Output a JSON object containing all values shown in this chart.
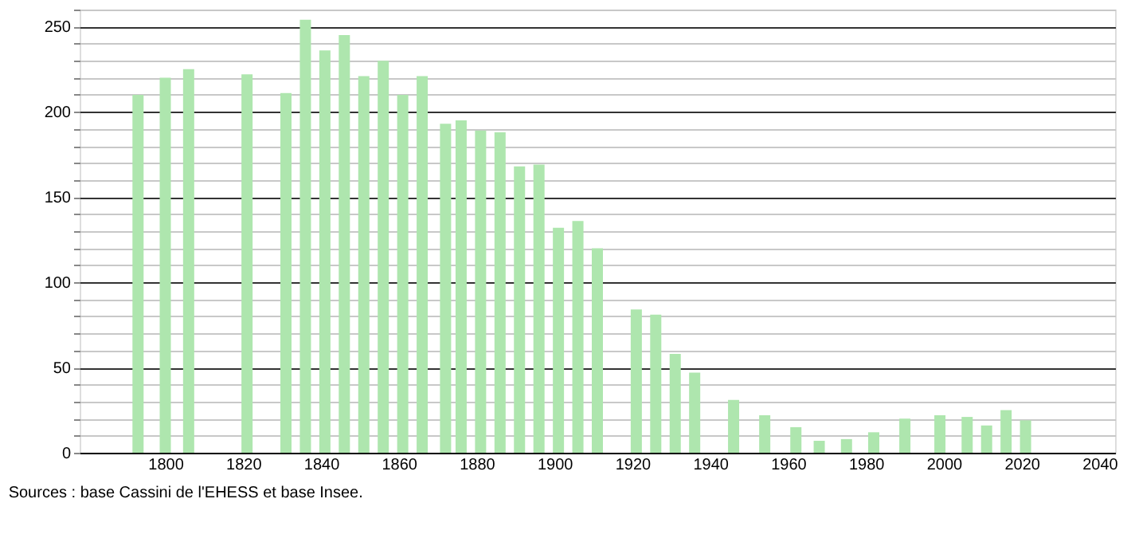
{
  "chart_data": {
    "type": "bar",
    "x": [
      1793,
      1800,
      1806,
      1821,
      1831,
      1836,
      1841,
      1846,
      1851,
      1856,
      1861,
      1866,
      1872,
      1876,
      1881,
      1886,
      1891,
      1896,
      1901,
      1906,
      1911,
      1921,
      1926,
      1931,
      1936,
      1946,
      1954,
      1962,
      1968,
      1975,
      1982,
      1990,
      1999,
      2006,
      2011,
      2016,
      2021
    ],
    "values": [
      210,
      220,
      225,
      222,
      211,
      254,
      236,
      245,
      221,
      230,
      210,
      221,
      193,
      195,
      189,
      188,
      168,
      169,
      132,
      136,
      120,
      84,
      81,
      58,
      47,
      31,
      22,
      15,
      7,
      8,
      12,
      20,
      22,
      21,
      16,
      25,
      19
    ],
    "color": "#aee6ae",
    "xlim": [
      1778,
      2044
    ],
    "xticks": [
      1800,
      1820,
      1840,
      1860,
      1880,
      1900,
      1920,
      1940,
      1960,
      1980,
      2000,
      2020,
      2040
    ],
    "ylim": [
      0,
      260
    ],
    "yticks": [
      0,
      {
        "value": 10,
        "label": null
      },
      {
        "value": 20,
        "label": null
      },
      {
        "value": 30,
        "label": null
      },
      {
        "value": 40,
        "label": null
      },
      50,
      {
        "value": 60,
        "label": null
      },
      {
        "value": 70,
        "label": null
      },
      {
        "value": 80,
        "label": null
      },
      {
        "value": 90,
        "label": null
      },
      100,
      {
        "value": 110,
        "label": null
      },
      {
        "value": 120,
        "label": null
      },
      {
        "value": 130,
        "label": null
      },
      {
        "value": 140,
        "label": null
      },
      150,
      {
        "value": 160,
        "label": null
      },
      {
        "value": 170,
        "label": null
      },
      {
        "value": 180,
        "label": null
      },
      {
        "value": 190,
        "label": null
      },
      200,
      {
        "value": 210,
        "label": null
      },
      {
        "value": 220,
        "label": null
      },
      {
        "value": 230,
        "label": null
      },
      {
        "value": 240,
        "label": null
      },
      250,
      {
        "value": 260,
        "label": null
      }
    ],
    "grid": "y",
    "annotations": [
      "Sources : base Cassini de l'EHESS et base Insee."
    ]
  }
}
